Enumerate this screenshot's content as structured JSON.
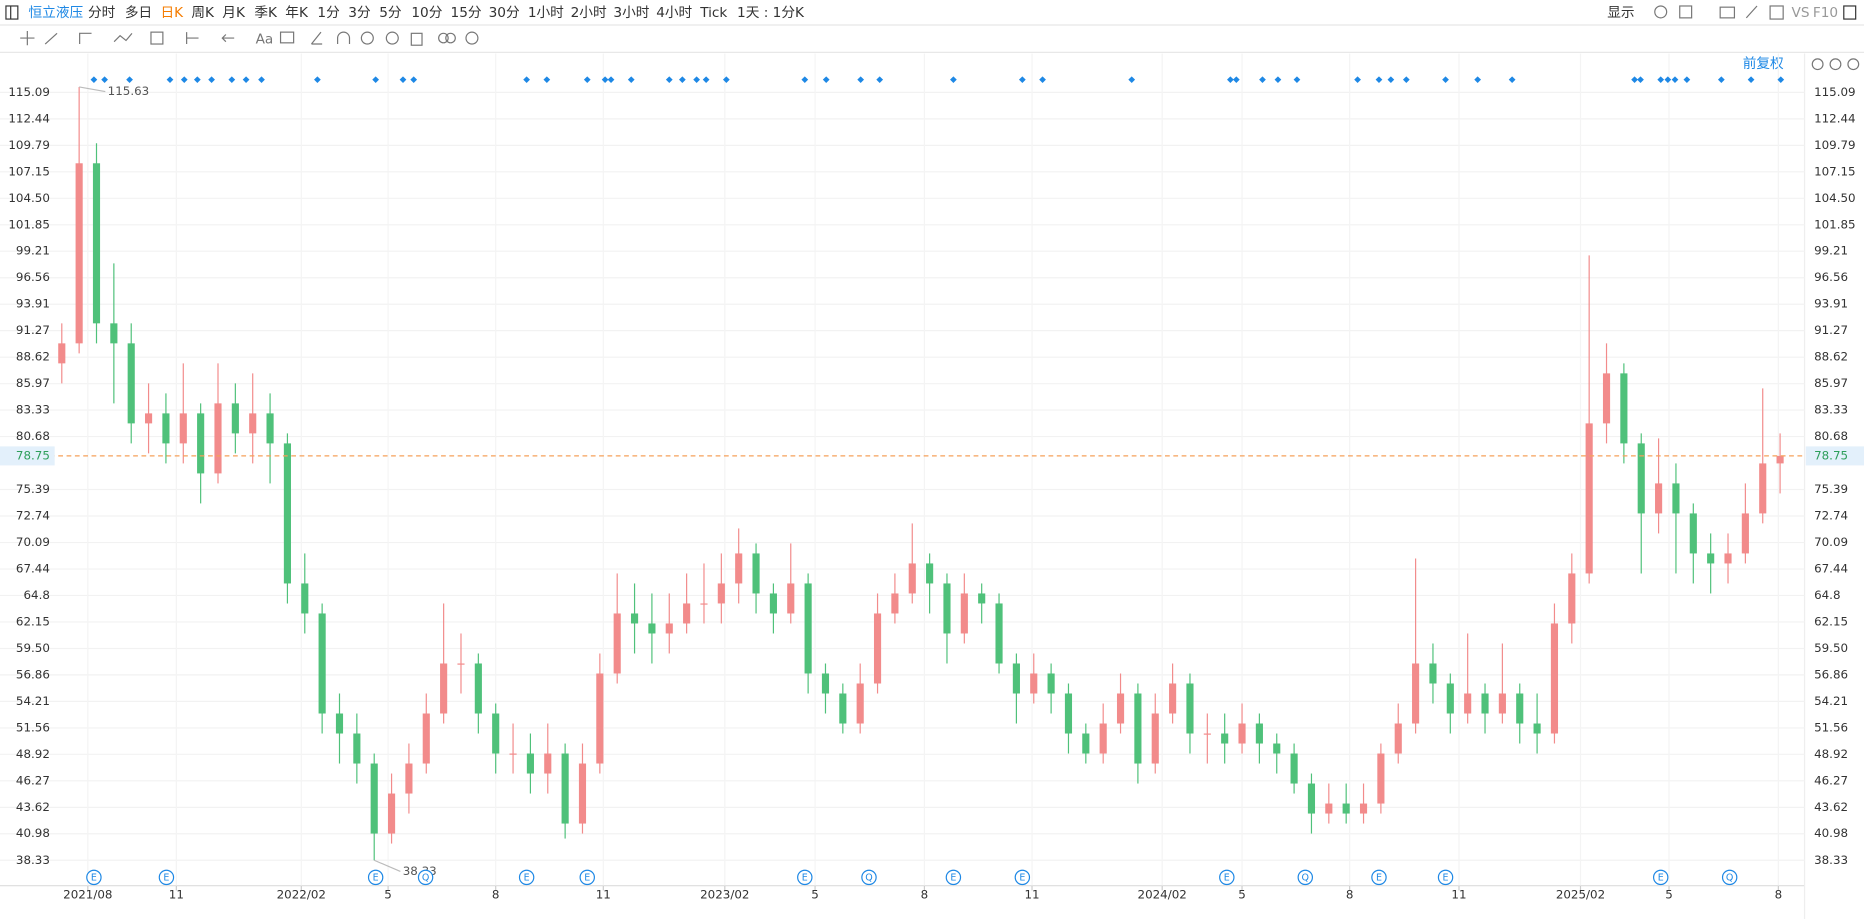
{
  "header": {
    "stock": "恒立液压",
    "periods": [
      "分时",
      "多日",
      "日K",
      "周K",
      "月K",
      "季K",
      "年K",
      "1分",
      "3分",
      "5分",
      "10分",
      "15分",
      "30分",
      "1小时",
      "2小时",
      "3小时",
      "4小时",
      "Tick",
      "1天 : 1分K"
    ],
    "active": "日K",
    "display": "显示",
    "vs": "VS",
    "f10": "F10",
    "text_tool": "Aa",
    "adjust": "前复权"
  },
  "events": [
    "E",
    "E",
    "E",
    "Q",
    "E",
    "E",
    "E",
    "Q",
    "E",
    "E",
    "E",
    "Q",
    "E",
    "E",
    "E",
    "Q"
  ],
  "chart_data": {
    "type": "candlestick",
    "up_color": "#f28b8b",
    "down_color": "#4fc17a",
    "grid": true,
    "open": [
      88,
      90,
      108,
      92,
      90,
      82,
      83,
      80,
      83,
      77,
      84,
      81,
      83,
      80,
      66,
      63,
      53,
      51,
      48,
      41,
      45,
      48,
      53,
      58,
      58,
      53,
      49,
      49,
      47,
      49,
      42,
      48,
      57,
      63,
      62,
      61,
      62,
      64,
      64,
      66,
      69,
      65,
      63,
      66,
      57,
      55,
      52,
      56,
      63,
      65,
      68,
      66,
      61,
      65,
      64,
      58,
      55,
      57,
      55,
      51,
      49,
      52,
      55,
      48,
      53,
      56,
      51,
      51,
      50,
      52,
      50,
      49,
      46,
      43,
      44,
      43,
      44,
      49,
      52,
      58,
      56,
      53,
      55,
      53,
      55,
      52,
      51,
      62,
      67,
      82,
      87,
      80,
      73,
      76,
      73,
      69,
      68,
      69,
      73,
      78
    ],
    "high": [
      92,
      115.63,
      110,
      98,
      92,
      86,
      85,
      88,
      84,
      88,
      86,
      87,
      85,
      81,
      69,
      64,
      55,
      53,
      49,
      47,
      50,
      55,
      64,
      61,
      59,
      54,
      52,
      51,
      52,
      50,
      50,
      59,
      67,
      66,
      65,
      65,
      67,
      68,
      69,
      71.5,
      70,
      66,
      70,
      67,
      58,
      56,
      58,
      65,
      67,
      72,
      69,
      67,
      67,
      66,
      65,
      59,
      59,
      58,
      56,
      52,
      54,
      57,
      56,
      55,
      58,
      57,
      53,
      53,
      54,
      53,
      51,
      50,
      47,
      46,
      46,
      46,
      50,
      54,
      68.5,
      60,
      57,
      61,
      56,
      60,
      56,
      55,
      64,
      69,
      98.8,
      90,
      88,
      81,
      80.5,
      78,
      74,
      71,
      71,
      76,
      85.5,
      81
    ],
    "low": [
      86,
      89,
      90,
      84,
      80,
      79,
      78,
      78,
      74,
      76,
      79,
      78,
      76,
      64,
      61,
      51,
      48,
      46,
      38.33,
      40,
      43,
      47,
      52,
      55,
      51,
      47,
      47,
      45,
      45,
      40.5,
      41,
      47,
      56,
      59,
      58,
      59,
      61,
      62,
      62,
      64,
      63,
      61,
      62,
      55,
      53,
      51,
      51,
      55,
      62,
      64,
      63,
      58,
      60,
      62,
      57,
      52,
      54,
      53,
      49,
      48,
      48,
      51,
      46,
      47,
      52,
      49,
      48,
      48,
      49,
      48,
      47,
      45,
      41,
      42,
      42,
      42,
      43,
      48,
      51,
      54,
      51,
      52,
      51,
      52,
      50,
      49,
      50,
      60,
      66,
      80,
      78,
      67,
      71,
      67,
      66,
      65,
      66,
      68,
      72,
      75
    ],
    "close": [
      90,
      108,
      92,
      90,
      82,
      83,
      80,
      83,
      77,
      84,
      81,
      83,
      80,
      66,
      63,
      53,
      51,
      48,
      41,
      45,
      48,
      53,
      58,
      58,
      53,
      49,
      49,
      47,
      49,
      42,
      48,
      57,
      63,
      62,
      61,
      62,
      64,
      64,
      66,
      69,
      65,
      63,
      66,
      57,
      55,
      52,
      56,
      63,
      65,
      68,
      66,
      61,
      65,
      64,
      58,
      55,
      57,
      55,
      51,
      49,
      52,
      55,
      48,
      53,
      56,
      51,
      51,
      50,
      52,
      50,
      49,
      46,
      43,
      44,
      43,
      44,
      49,
      52,
      58,
      56,
      53,
      55,
      53,
      55,
      52,
      51,
      62,
      67,
      82,
      87,
      80,
      73,
      76,
      73,
      69,
      68,
      69,
      73,
      78,
      78.75
    ],
    "xlim": [
      -3.56,
      100.41
    ],
    "xticks": [
      {
        "value": 1.5,
        "label": "2021/08"
      },
      {
        "value": 6.6,
        "label": "11"
      },
      {
        "value": 13.8,
        "label": "2022/02"
      },
      {
        "value": 18.8,
        "label": "5"
      },
      {
        "value": 25,
        "label": "8"
      },
      {
        "value": 31.2,
        "label": "11"
      },
      {
        "value": 38.2,
        "label": "2023/02"
      },
      {
        "value": 43.4,
        "label": "5"
      },
      {
        "value": 49.7,
        "label": "8"
      },
      {
        "value": 55.9,
        "label": "11"
      },
      {
        "value": 63.4,
        "label": "2024/02"
      },
      {
        "value": 68,
        "label": "5"
      },
      {
        "value": 74.2,
        "label": "8"
      },
      {
        "value": 80.5,
        "label": "11"
      },
      {
        "value": 87.5,
        "label": "2025/02"
      },
      {
        "value": 92.6,
        "label": "5"
      },
      {
        "value": 98.9,
        "label": "8"
      }
    ],
    "ylim": [
      35.79,
      118.97
    ],
    "yticks": [
      38.33,
      40.98,
      43.62,
      46.27,
      48.92,
      51.56,
      54.21,
      56.86,
      {
        "value": 59.5,
        "label": "59.50"
      },
      62.15,
      64.8,
      67.44,
      70.09,
      72.74,
      75.39,
      80.68,
      83.33,
      85.97,
      88.62,
      91.27,
      93.91,
      96.56,
      99.21,
      101.85,
      {
        "value": 104.5,
        "label": "104.50"
      },
      107.15,
      109.79,
      112.44,
      115.09
    ]
  }
}
